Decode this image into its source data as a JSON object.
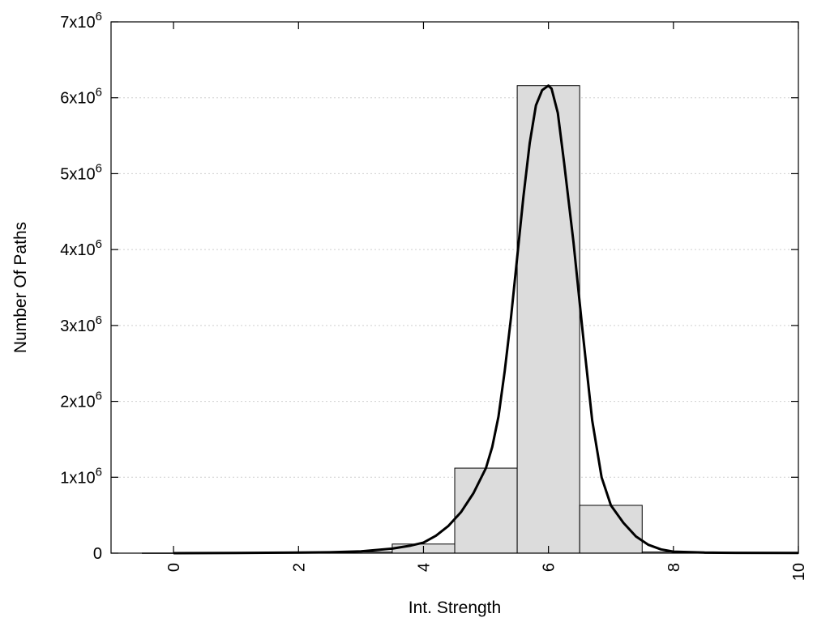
{
  "chart_data": {
    "type": "bar",
    "title": "",
    "xlabel": "Int. Strength",
    "ylabel": "Number Of Paths",
    "xlim": [
      -1,
      10
    ],
    "ylim": [
      0,
      7000000
    ],
    "grid": "horizontal dotted",
    "bar_color": "#dcdcdc",
    "line_color": "#000000",
    "x_ticks": [
      {
        "value": 0,
        "label": "0"
      },
      {
        "value": 2,
        "label": "2"
      },
      {
        "value": 4,
        "label": "4"
      },
      {
        "value": 6,
        "label": "6"
      },
      {
        "value": 8,
        "label": "8"
      },
      {
        "value": 10,
        "label": "10"
      }
    ],
    "y_ticks": [
      {
        "value": 0,
        "base": "0",
        "exp": ""
      },
      {
        "value": 1000000,
        "base": "1x10",
        "exp": "6"
      },
      {
        "value": 2000000,
        "base": "2x10",
        "exp": "6"
      },
      {
        "value": 3000000,
        "base": "3x10",
        "exp": "6"
      },
      {
        "value": 4000000,
        "base": "4x10",
        "exp": "6"
      },
      {
        "value": 5000000,
        "base": "5x10",
        "exp": "6"
      },
      {
        "value": 6000000,
        "base": "6x10",
        "exp": "6"
      },
      {
        "value": 7000000,
        "base": "7x10",
        "exp": "6"
      }
    ],
    "bars": [
      {
        "x": 0,
        "value": 2000
      },
      {
        "x": 1,
        "value": 3000
      },
      {
        "x": 2,
        "value": 5000
      },
      {
        "x": 3,
        "value": 15000
      },
      {
        "x": 4,
        "value": 120000
      },
      {
        "x": 5,
        "value": 1120000
      },
      {
        "x": 6,
        "value": 6160000
      },
      {
        "x": 7,
        "value": 630000
      },
      {
        "x": 8,
        "value": 15000
      },
      {
        "x": 9,
        "value": 3000
      },
      {
        "x": 10,
        "value": 1000
      }
    ],
    "bar_width": 1,
    "fit_curve": [
      [
        0,
        0
      ],
      [
        1,
        2000
      ],
      [
        2,
        8000
      ],
      [
        2.5,
        12000
      ],
      [
        3,
        25000
      ],
      [
        3.5,
        60000
      ],
      [
        3.8,
        100000
      ],
      [
        4,
        140000
      ],
      [
        4.2,
        230000
      ],
      [
        4.4,
        360000
      ],
      [
        4.6,
        540000
      ],
      [
        4.8,
        790000
      ],
      [
        5,
        1120000
      ],
      [
        5.1,
        1400000
      ],
      [
        5.2,
        1800000
      ],
      [
        5.3,
        2400000
      ],
      [
        5.4,
        3100000
      ],
      [
        5.5,
        3900000
      ],
      [
        5.6,
        4700000
      ],
      [
        5.7,
        5400000
      ],
      [
        5.8,
        5900000
      ],
      [
        5.9,
        6100000
      ],
      [
        6.0,
        6160000
      ],
      [
        6.05,
        6120000
      ],
      [
        6.15,
        5800000
      ],
      [
        6.25,
        5150000
      ],
      [
        6.4,
        4100000
      ],
      [
        6.55,
        2900000
      ],
      [
        6.7,
        1750000
      ],
      [
        6.85,
        1000000
      ],
      [
        7.0,
        630000
      ],
      [
        7.2,
        400000
      ],
      [
        7.4,
        220000
      ],
      [
        7.6,
        110000
      ],
      [
        7.8,
        50000
      ],
      [
        8.0,
        20000
      ],
      [
        8.5,
        8000
      ],
      [
        9,
        4000
      ],
      [
        10,
        2000
      ]
    ]
  }
}
